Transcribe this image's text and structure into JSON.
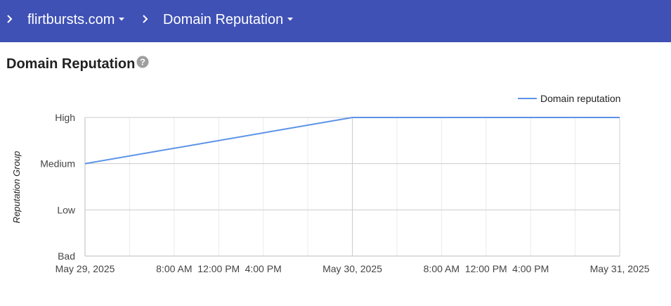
{
  "breadcrumb": {
    "domain": "flirtbursts.com",
    "section": "Domain Reputation"
  },
  "page": {
    "title": "Domain Reputation",
    "help_icon": "help-circle-icon"
  },
  "colors": {
    "header": "#3f51b5",
    "series": "#5b93e6"
  },
  "chart_data": {
    "type": "line",
    "title": "",
    "xlabel": "",
    "ylabel": "Reputation Group",
    "y_categories": [
      "Bad",
      "Low",
      "Medium",
      "High"
    ],
    "xlim": [
      "May 29, 2025 00:00",
      "May 31, 2025 00:00"
    ],
    "x_ticks": [
      {
        "t": "2025-05-29T00:00",
        "label": "May 29, 2025",
        "major": true
      },
      {
        "t": "2025-05-29T04:00",
        "label": "",
        "major": false
      },
      {
        "t": "2025-05-29T08:00",
        "label": "8:00 AM",
        "major": false
      },
      {
        "t": "2025-05-29T12:00",
        "label": "12:00 PM",
        "major": false
      },
      {
        "t": "2025-05-29T16:00",
        "label": "4:00 PM",
        "major": false
      },
      {
        "t": "2025-05-29T20:00",
        "label": "",
        "major": false
      },
      {
        "t": "2025-05-30T00:00",
        "label": "May 30, 2025",
        "major": true
      },
      {
        "t": "2025-05-30T04:00",
        "label": "",
        "major": false
      },
      {
        "t": "2025-05-30T08:00",
        "label": "8:00 AM",
        "major": false
      },
      {
        "t": "2025-05-30T12:00",
        "label": "12:00 PM",
        "major": false
      },
      {
        "t": "2025-05-30T16:00",
        "label": "4:00 PM",
        "major": false
      },
      {
        "t": "2025-05-30T20:00",
        "label": "",
        "major": false
      },
      {
        "t": "2025-05-31T00:00",
        "label": "May 31, 2025",
        "major": true
      }
    ],
    "series": [
      {
        "name": "Domain reputation",
        "points": [
          {
            "x": "2025-05-29T00:00",
            "y": "Medium"
          },
          {
            "x": "2025-05-30T00:00",
            "y": "High"
          },
          {
            "x": "2025-05-31T00:00",
            "y": "High"
          }
        ]
      }
    ],
    "legend_position": "top-right",
    "grid": true
  }
}
